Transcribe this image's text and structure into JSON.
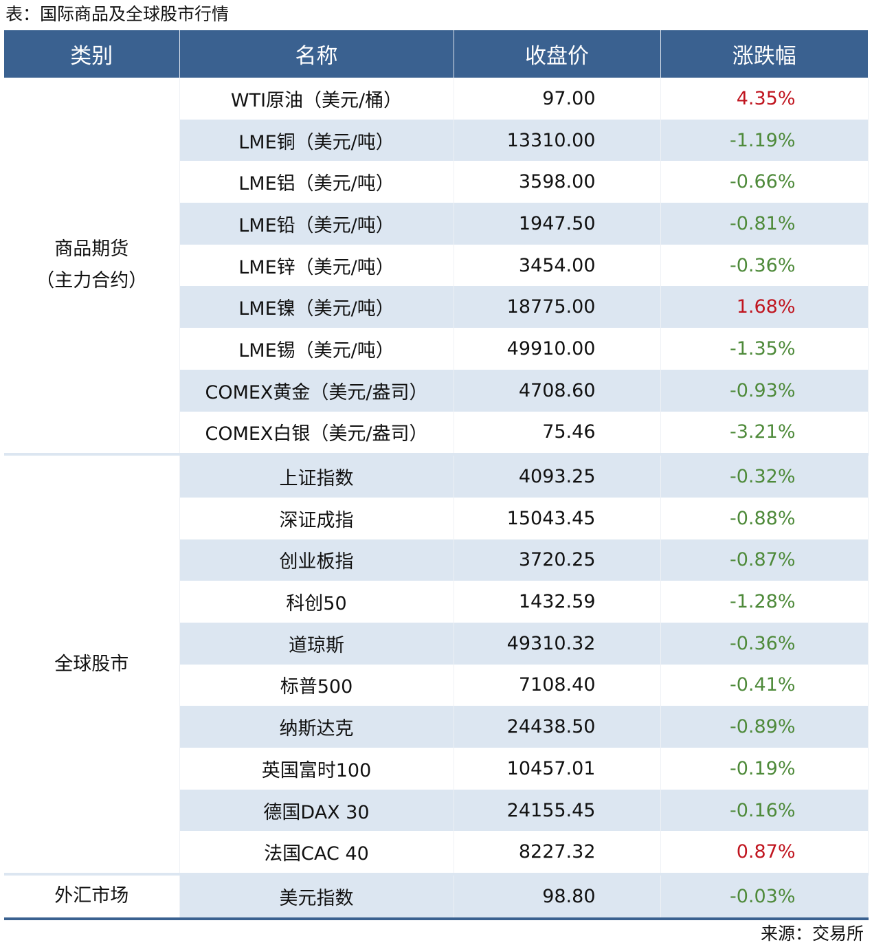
{
  "title": "表：国际商品及全球股市行情",
  "source": "来源：交易所",
  "colors": {
    "header_bg": "#3a6190",
    "row_shade": "#dce6f1",
    "up": "#c0151f",
    "down": "#4e8a3a"
  },
  "headers": [
    "类别",
    "名称",
    "收盘价",
    "涨跌幅"
  ],
  "groups": [
    {
      "category": "商品期货\n（主力合约）",
      "rows": [
        {
          "name": "WTI原油（美元/桶）",
          "close": "97.00",
          "change": "4.35%"
        },
        {
          "name": "LME铜（美元/吨）",
          "close": "13310.00",
          "change": "-1.19%"
        },
        {
          "name": "LME铝（美元/吨）",
          "close": "3598.00",
          "change": "-0.66%"
        },
        {
          "name": "LME铅（美元/吨）",
          "close": "1947.50",
          "change": "-0.81%"
        },
        {
          "name": "LME锌（美元/吨）",
          "close": "3454.00",
          "change": "-0.36%"
        },
        {
          "name": "LME镍（美元/吨）",
          "close": "18775.00",
          "change": "1.68%"
        },
        {
          "name": "LME锡（美元/吨）",
          "close": "49910.00",
          "change": "-1.35%"
        },
        {
          "name": "COMEX黄金（美元/盎司）",
          "close": "4708.60",
          "change": "-0.93%"
        },
        {
          "name": "COMEX白银（美元/盎司）",
          "close": "75.46",
          "change": "-3.21%"
        }
      ]
    },
    {
      "category": "全球股市",
      "rows": [
        {
          "name": "上证指数",
          "close": "4093.25",
          "change": "-0.32%"
        },
        {
          "name": "深证成指",
          "close": "15043.45",
          "change": "-0.88%"
        },
        {
          "name": "创业板指",
          "close": "3720.25",
          "change": "-0.87%"
        },
        {
          "name": "科创50",
          "close": "1432.59",
          "change": "-1.28%"
        },
        {
          "name": "道琼斯",
          "close": "49310.32",
          "change": "-0.36%"
        },
        {
          "name": "标普500",
          "close": "7108.40",
          "change": "-0.41%"
        },
        {
          "name": "纳斯达克",
          "close": "24438.50",
          "change": "-0.89%"
        },
        {
          "name": "英国富时100",
          "close": "10457.01",
          "change": "-0.19%"
        },
        {
          "name": "德国DAX 30",
          "close": "24155.45",
          "change": "-0.16%"
        },
        {
          "name": "法国CAC 40",
          "close": "8227.32",
          "change": "0.87%"
        }
      ]
    },
    {
      "category": "外汇市场",
      "rows": [
        {
          "name": "美元指数",
          "close": "98.80",
          "change": "-0.03%"
        }
      ]
    }
  ]
}
